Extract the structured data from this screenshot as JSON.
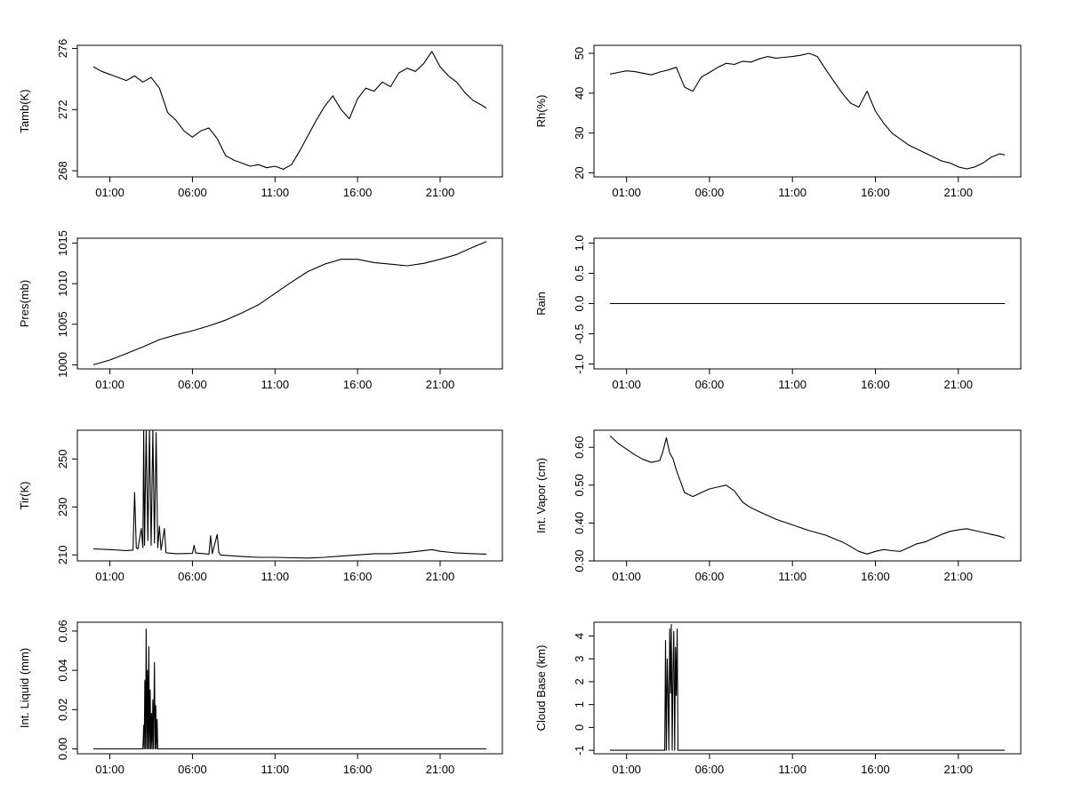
{
  "x_ticks": [
    "01:00",
    "06:00",
    "11:00",
    "16:00",
    "21:00"
  ],
  "chart_data": [
    {
      "type": "line",
      "ylabel": "Tamb(K)",
      "xlabel": "",
      "x_ticks": [
        "01:00",
        "06:00",
        "11:00",
        "16:00",
        "21:00"
      ],
      "y_ticks": [
        "268",
        "272",
        "276"
      ],
      "xlim": [
        0,
        24
      ],
      "ylim": [
        267.6,
        276.2
      ],
      "series": [
        {
          "x": [
            0,
            0.5,
            1,
            1.5,
            2,
            2.5,
            3,
            3.5,
            4,
            4.5,
            5,
            5.5,
            6,
            6.5,
            7,
            7.5,
            8,
            8.5,
            9,
            9.5,
            10,
            10.5,
            11,
            11.5,
            12,
            12.5,
            13,
            13.5,
            14,
            14.5,
            15,
            15.5,
            16,
            16.5,
            17,
            17.5,
            18,
            18.5,
            19,
            19.5,
            20,
            20.5,
            21,
            21.5,
            22,
            22.5,
            23,
            23.5,
            23.8
          ],
          "values": [
            274.8,
            274.5,
            274.3,
            274.1,
            273.9,
            274.2,
            273.8,
            274.1,
            273.4,
            271.8,
            271.3,
            270.6,
            270.2,
            270.6,
            270.8,
            270.1,
            269.0,
            268.7,
            268.5,
            268.3,
            268.4,
            268.2,
            268.3,
            268.1,
            268.4,
            269.3,
            270.3,
            271.3,
            272.2,
            272.9,
            272.0,
            271.4,
            272.7,
            273.4,
            273.2,
            273.8,
            273.5,
            274.4,
            274.7,
            274.5,
            275.0,
            275.8,
            274.8,
            274.2,
            273.8,
            273.1,
            272.6,
            272.3,
            272.1
          ]
        }
      ]
    },
    {
      "type": "line",
      "ylabel": "Rh(%)",
      "xlabel": "",
      "x_ticks": [
        "01:00",
        "06:00",
        "11:00",
        "16:00",
        "21:00"
      ],
      "y_ticks": [
        "20",
        "30",
        "40",
        "50"
      ],
      "xlim": [
        0,
        24
      ],
      "ylim": [
        19,
        52
      ],
      "series": [
        {
          "x": [
            0,
            0.5,
            1,
            1.5,
            2,
            2.5,
            3,
            3.5,
            4,
            4.5,
            5,
            5.5,
            6,
            6.5,
            7,
            7.5,
            8,
            8.5,
            9,
            9.5,
            10,
            10.5,
            11,
            11.5,
            12,
            12.5,
            13,
            13.5,
            14,
            14.5,
            15,
            15.5,
            16,
            16.5,
            17,
            17.5,
            18,
            18.5,
            19,
            19.5,
            20,
            20.5,
            21,
            21.5,
            22,
            22.5,
            23,
            23.5,
            23.8
          ],
          "values": [
            44.8,
            45.2,
            45.6,
            45.4,
            45.0,
            44.6,
            45.3,
            45.8,
            46.5,
            41.5,
            40.5,
            44.0,
            45.2,
            46.5,
            47.5,
            47.2,
            48.0,
            47.8,
            48.6,
            49.2,
            48.8,
            49.0,
            49.2,
            49.5,
            50.0,
            49.2,
            46.0,
            43.0,
            40.0,
            37.5,
            36.5,
            40.5,
            35.5,
            32.5,
            30.0,
            28.5,
            27.0,
            26.0,
            25.0,
            24.0,
            23.0,
            22.5,
            21.5,
            21.0,
            21.5,
            22.5,
            24.0,
            24.8,
            24.5
          ]
        }
      ]
    },
    {
      "type": "line",
      "ylabel": "Pres(mb)",
      "xlabel": "",
      "x_ticks": [
        "01:00",
        "06:00",
        "11:00",
        "16:00",
        "21:00"
      ],
      "y_ticks": [
        "1000",
        "1005",
        "1010",
        "1015"
      ],
      "xlim": [
        0,
        24
      ],
      "ylim": [
        999.5,
        1015.6
      ],
      "series": [
        {
          "x": [
            0,
            1,
            2,
            3,
            4,
            5,
            6,
            7,
            8,
            9,
            10,
            11,
            12,
            13,
            14,
            15,
            16,
            17,
            18,
            19,
            20,
            21,
            22,
            23,
            23.8
          ],
          "values": [
            1000.0,
            1000.6,
            1001.4,
            1002.2,
            1003.1,
            1003.7,
            1004.2,
            1004.8,
            1005.5,
            1006.4,
            1007.4,
            1008.8,
            1010.2,
            1011.5,
            1012.4,
            1013.0,
            1013.0,
            1012.6,
            1012.4,
            1012.2,
            1012.5,
            1013.0,
            1013.6,
            1014.5,
            1015.2
          ]
        }
      ]
    },
    {
      "type": "line",
      "ylabel": "Rain",
      "xlabel": "",
      "x_ticks": [
        "01:00",
        "06:00",
        "11:00",
        "16:00",
        "21:00"
      ],
      "y_ticks": [
        "-1.0",
        "-0.5",
        "0.0",
        "0.5",
        "1.0"
      ],
      "xlim": [
        0,
        24
      ],
      "ylim": [
        -1.08,
        1.08
      ],
      "series": [
        {
          "x": [
            0,
            23.8
          ],
          "values": [
            0,
            0
          ]
        }
      ]
    },
    {
      "type": "line",
      "ylabel": "Tir(K)",
      "xlabel": "",
      "x_ticks": [
        "01:00",
        "06:00",
        "11:00",
        "16:00",
        "21:00"
      ],
      "y_ticks": [
        "210",
        "230",
        "250"
      ],
      "xlim": [
        0,
        24
      ],
      "ylim": [
        207.5,
        262
      ],
      "series": [
        {
          "x": [
            0,
            1,
            2,
            2.4,
            2.5,
            2.6,
            2.7,
            2.9,
            3.0,
            3.05,
            3.1,
            3.2,
            3.3,
            3.4,
            3.5,
            3.6,
            3.7,
            3.8,
            3.9,
            4.0,
            4.1,
            4.3,
            4.4,
            4.5,
            5,
            6,
            6.1,
            6.2,
            7,
            7.1,
            7.2,
            7.5,
            7.6,
            7.7,
            8,
            9,
            10,
            11,
            12,
            13,
            14,
            15,
            16,
            17,
            18,
            19,
            20,
            20.5,
            21,
            22,
            23,
            23.8
          ],
          "values": [
            212.5,
            212.2,
            211.8,
            212.0,
            236.0,
            213.0,
            212.5,
            221.0,
            213.0,
            262.0,
            214.0,
            262.0,
            216.0,
            262.0,
            214.0,
            262.0,
            215.0,
            261.0,
            213.0,
            222.0,
            212.0,
            221.0,
            211.0,
            210.8,
            210.5,
            210.6,
            214.0,
            210.8,
            210.3,
            218.0,
            210.5,
            218.5,
            211.0,
            210.0,
            209.8,
            209.3,
            209.0,
            209.0,
            208.8,
            208.7,
            209.0,
            209.5,
            210.0,
            210.5,
            210.5,
            211.0,
            211.8,
            212.2,
            211.5,
            210.8,
            210.5,
            210.3
          ]
        }
      ]
    },
    {
      "type": "line",
      "ylabel": "Int. Vapor (cm)",
      "xlabel": "",
      "x_ticks": [
        "01:00",
        "06:00",
        "11:00",
        "16:00",
        "21:00"
      ],
      "y_ticks": [
        "0.30",
        "0.40",
        "0.50",
        "0.60"
      ],
      "xlim": [
        0,
        24
      ],
      "ylim": [
        0.3,
        0.645
      ],
      "series": [
        {
          "x": [
            0,
            0.5,
            1,
            1.5,
            2,
            2.5,
            3,
            3.2,
            3.4,
            3.6,
            3.8,
            4,
            4.5,
            5,
            5.5,
            6,
            6.5,
            7,
            7.5,
            8,
            8.5,
            9,
            10,
            11,
            12,
            13,
            14,
            14.5,
            15,
            15.5,
            16,
            16.5,
            17,
            17.5,
            18,
            18.5,
            19,
            19.5,
            20,
            20.5,
            21,
            21.5,
            22,
            22.5,
            23,
            23.5,
            23.8
          ],
          "values": [
            0.63,
            0.61,
            0.595,
            0.58,
            0.568,
            0.56,
            0.565,
            0.59,
            0.625,
            0.585,
            0.57,
            0.54,
            0.48,
            0.47,
            0.48,
            0.49,
            0.495,
            0.5,
            0.485,
            0.455,
            0.44,
            0.43,
            0.41,
            0.395,
            0.38,
            0.368,
            0.35,
            0.338,
            0.325,
            0.318,
            0.325,
            0.33,
            0.327,
            0.325,
            0.335,
            0.345,
            0.35,
            0.36,
            0.37,
            0.378,
            0.382,
            0.385,
            0.38,
            0.375,
            0.37,
            0.365,
            0.36
          ]
        }
      ]
    },
    {
      "type": "line",
      "ylabel": "Int. Liquid (mm)",
      "xlabel": "",
      "x_ticks": [
        "01:00",
        "06:00",
        "11:00",
        "16:00",
        "21:00"
      ],
      "y_ticks": [
        "0.00",
        "0.02",
        "0.04",
        "0.06"
      ],
      "xlim": [
        0,
        24
      ],
      "ylim": [
        -0.0025,
        0.0645
      ],
      "series": [
        {
          "x": [
            0,
            3.0,
            3.05,
            3.08,
            3.12,
            3.16,
            3.2,
            3.24,
            3.28,
            3.32,
            3.36,
            3.4,
            3.44,
            3.48,
            3.52,
            3.56,
            3.6,
            3.64,
            3.7,
            3.74,
            3.78,
            3.82,
            3.86,
            3.9,
            23.8
          ],
          "values": [
            0,
            0,
            0.012,
            0,
            0.035,
            0,
            0.061,
            0,
            0.04,
            0,
            0.052,
            0,
            0.03,
            0,
            0.018,
            0,
            0.025,
            0,
            0.044,
            0,
            0.022,
            0,
            0.015,
            0,
            0
          ]
        }
      ]
    },
    {
      "type": "line",
      "ylabel": "Cloud Base (km)",
      "xlabel": "",
      "x_ticks": [
        "01:00",
        "06:00",
        "11:00",
        "16:00",
        "21:00"
      ],
      "y_ticks": [
        "-1",
        "0",
        "1",
        "2",
        "3",
        "4"
      ],
      "xlim": [
        0,
        24
      ],
      "ylim": [
        -1.15,
        4.6
      ],
      "series": [
        {
          "x": [
            0,
            3.3,
            3.35,
            3.4,
            3.45,
            3.5,
            3.55,
            3.6,
            3.65,
            3.7,
            3.75,
            3.8,
            3.85,
            3.9,
            3.95,
            4.0,
            4.05,
            4.1,
            4.15,
            23.8
          ],
          "values": [
            -1,
            -1,
            3.8,
            -1,
            3.0,
            1.5,
            -1,
            4.3,
            1.5,
            4.5,
            -1,
            2.5,
            4.2,
            -1,
            3.5,
            1.4,
            4.3,
            -1,
            -1,
            -1
          ]
        }
      ]
    }
  ]
}
